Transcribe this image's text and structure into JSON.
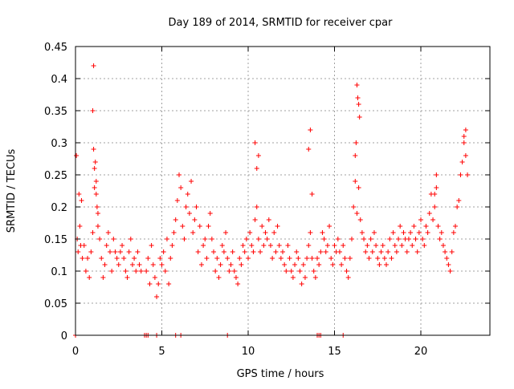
{
  "colors": {
    "series": "#ff0000",
    "axis": "#000000",
    "grid": "#a0a0a0"
  },
  "chart_data": {
    "type": "scatter",
    "title": "Day 189 of 2014, SRMTID for receiver cpar",
    "xlabel": "GPS time / hours",
    "ylabel": "SRMTID / TECUs",
    "xlim": [
      0,
      24
    ],
    "ylim": [
      0,
      0.45
    ],
    "xticks": [
      0,
      5,
      10,
      15,
      20
    ],
    "yticks": [
      0,
      0.05,
      0.1,
      0.15,
      0.2,
      0.25,
      0.3,
      0.35,
      0.4,
      0.45
    ],
    "xtick_labels": [
      "0",
      "5",
      "10",
      "15",
      "20"
    ],
    "ytick_labels": [
      "0",
      "0.05",
      "0.1",
      "0.15",
      "0.2",
      "0.25",
      "0.3",
      "0.35",
      "0.4",
      "0.45"
    ],
    "grid": true,
    "marker": "+",
    "series": [
      {
        "name": "SRMTID",
        "x": [
          0.05,
          0.1,
          0.15,
          0.2,
          0.25,
          0.3,
          0.35,
          0.4,
          0.5,
          0.6,
          0.7,
          0.8,
          0.9,
          1.0,
          1.05,
          1.1,
          1.15,
          1.2,
          1.25,
          1.3,
          1.4,
          1.5,
          1.6,
          1.7,
          1.8,
          1.9,
          2.0,
          2.1,
          2.2,
          2.3,
          2.4,
          2.5,
          2.6,
          2.7,
          2.8,
          2.9,
          3.0,
          3.1,
          3.2,
          3.3,
          3.4,
          3.5,
          3.6,
          3.7,
          3.8,
          4.1,
          4.2,
          4.3,
          4.4,
          4.5,
          4.6,
          4.7,
          4.8,
          4.9,
          5.0,
          5.1,
          5.2,
          5.3,
          5.4,
          5.5,
          5.6,
          5.7,
          5.8,
          5.9,
          6.0,
          6.1,
          6.2,
          6.3,
          6.4,
          6.5,
          6.6,
          6.7,
          6.8,
          6.9,
          7.0,
          7.1,
          7.2,
          7.3,
          7.4,
          7.5,
          7.6,
          7.7,
          7.8,
          7.9,
          8.0,
          8.1,
          8.2,
          8.3,
          8.4,
          8.5,
          8.6,
          8.7,
          8.8,
          8.9,
          9.0,
          9.1,
          9.2,
          9.3,
          9.4,
          9.5,
          9.6,
          9.7,
          9.8,
          9.9,
          10.0,
          10.1,
          10.2,
          10.3,
          10.4,
          10.5,
          10.6,
          10.7,
          10.8,
          10.9,
          11.0,
          11.1,
          11.2,
          11.3,
          11.4,
          11.5,
          11.6,
          11.7,
          11.8,
          11.9,
          12.0,
          12.1,
          12.2,
          12.3,
          12.4,
          12.5,
          12.6,
          12.7,
          12.8,
          12.9,
          13.0,
          13.1,
          13.2,
          13.3,
          13.4,
          13.5,
          13.6,
          13.7,
          13.8,
          13.9,
          14.0,
          14.1,
          14.2,
          14.3,
          14.4,
          14.5,
          14.6,
          14.7,
          14.8,
          14.9,
          15.0,
          15.1,
          15.2,
          15.3,
          15.4,
          15.5,
          15.6,
          15.7,
          15.8,
          15.9,
          16.0,
          16.1,
          16.2,
          16.3,
          16.4,
          16.5,
          16.6,
          16.7,
          16.8,
          16.9,
          17.0,
          17.1,
          17.2,
          17.3,
          17.4,
          17.5,
          17.6,
          17.7,
          17.8,
          17.9,
          18.0,
          18.1,
          18.2,
          18.3,
          18.4,
          18.5,
          18.6,
          18.7,
          18.8,
          18.9,
          19.0,
          19.1,
          19.2,
          19.3,
          19.4,
          19.5,
          19.6,
          19.7,
          19.8,
          19.9,
          20.0,
          20.1,
          20.2,
          20.3,
          20.4,
          20.5,
          20.6,
          20.7,
          20.8,
          20.9,
          21.0,
          21.1,
          21.2,
          21.3,
          21.4,
          21.5,
          21.6,
          21.7,
          21.8,
          21.9,
          22.0,
          22.1,
          22.2,
          22.3,
          22.4,
          22.5,
          22.6,
          22.7,
          1.05,
          1.0,
          1.1,
          1.2,
          1.3,
          16.3,
          16.35,
          16.4,
          16.45,
          16.25,
          16.2,
          13.6,
          13.5,
          13.7,
          10.4,
          10.5,
          10.6,
          20.8,
          20.9,
          22.5,
          22.6,
          0.0,
          4.0,
          4.1,
          4.2,
          4.7,
          5.8,
          6.1,
          8.8,
          14.0,
          14.1,
          14.2,
          15.5
        ],
        "y": [
          0.28,
          0.15,
          0.13,
          0.22,
          0.17,
          0.14,
          0.21,
          0.12,
          0.14,
          0.1,
          0.12,
          0.09,
          0.13,
          0.16,
          0.29,
          0.23,
          0.27,
          0.24,
          0.2,
          0.17,
          0.15,
          0.12,
          0.09,
          0.11,
          0.14,
          0.16,
          0.13,
          0.1,
          0.15,
          0.13,
          0.12,
          0.11,
          0.13,
          0.14,
          0.12,
          0.1,
          0.09,
          0.13,
          0.15,
          0.11,
          0.12,
          0.1,
          0.13,
          0.11,
          0.1,
          0.1,
          0.12,
          0.08,
          0.14,
          0.11,
          0.09,
          0.06,
          0.08,
          0.12,
          0.11,
          0.13,
          0.1,
          0.15,
          0.08,
          0.12,
          0.14,
          0.16,
          0.18,
          0.21,
          0.25,
          0.23,
          0.17,
          0.15,
          0.2,
          0.22,
          0.19,
          0.24,
          0.16,
          0.18,
          0.2,
          0.13,
          0.17,
          0.11,
          0.14,
          0.15,
          0.12,
          0.17,
          0.19,
          0.15,
          0.13,
          0.1,
          0.12,
          0.09,
          0.11,
          0.14,
          0.13,
          0.16,
          0.12,
          0.1,
          0.11,
          0.13,
          0.1,
          0.09,
          0.08,
          0.12,
          0.11,
          0.14,
          0.13,
          0.15,
          0.12,
          0.16,
          0.14,
          0.13,
          0.18,
          0.2,
          0.15,
          0.13,
          0.17,
          0.14,
          0.16,
          0.15,
          0.18,
          0.14,
          0.12,
          0.16,
          0.13,
          0.17,
          0.14,
          0.12,
          0.13,
          0.11,
          0.1,
          0.14,
          0.12,
          0.1,
          0.09,
          0.11,
          0.13,
          0.12,
          0.1,
          0.08,
          0.11,
          0.09,
          0.12,
          0.14,
          0.16,
          0.12,
          0.1,
          0.09,
          0.12,
          0.11,
          0.13,
          0.16,
          0.15,
          0.13,
          0.14,
          0.17,
          0.12,
          0.11,
          0.14,
          0.13,
          0.15,
          0.13,
          0.11,
          0.14,
          0.12,
          0.1,
          0.09,
          0.12,
          0.15,
          0.2,
          0.24,
          0.19,
          0.23,
          0.18,
          0.16,
          0.15,
          0.13,
          0.14,
          0.12,
          0.15,
          0.13,
          0.16,
          0.14,
          0.12,
          0.11,
          0.13,
          0.14,
          0.12,
          0.11,
          0.13,
          0.15,
          0.12,
          0.16,
          0.14,
          0.13,
          0.15,
          0.17,
          0.14,
          0.16,
          0.15,
          0.13,
          0.15,
          0.16,
          0.14,
          0.17,
          0.15,
          0.13,
          0.16,
          0.18,
          0.15,
          0.14,
          0.17,
          0.16,
          0.19,
          0.22,
          0.18,
          0.2,
          0.23,
          0.17,
          0.15,
          0.16,
          0.14,
          0.13,
          0.12,
          0.11,
          0.1,
          0.13,
          0.16,
          0.17,
          0.2,
          0.21,
          0.25,
          0.27,
          0.3,
          0.28,
          0.25,
          0.42,
          0.35,
          0.26,
          0.22,
          0.19,
          0.39,
          0.37,
          0.36,
          0.34,
          0.3,
          0.28,
          0.32,
          0.29,
          0.22,
          0.3,
          0.26,
          0.28,
          0.22,
          0.25,
          0.31,
          0.32,
          0.0,
          0.0,
          0.0,
          0.0,
          0.0,
          0.0,
          0.0,
          0.0,
          0.0,
          0.0,
          0.0,
          0.0
        ]
      }
    ]
  }
}
